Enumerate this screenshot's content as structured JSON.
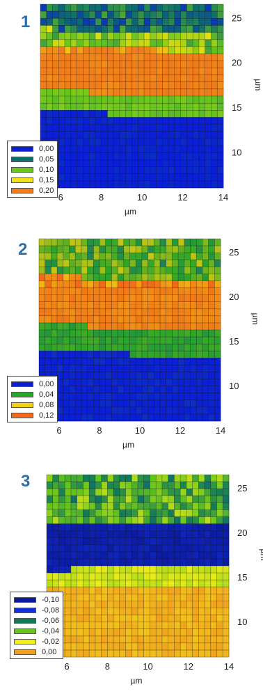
{
  "chart_data": [
    {
      "type": "heatmap",
      "panel_label": "1",
      "xlabel": "µm",
      "ylabel": "µm",
      "xlim": [
        5,
        14
      ],
      "ylim": [
        6,
        26.5
      ],
      "xticks": [
        6,
        8,
        10,
        12,
        14
      ],
      "yticks": [
        10,
        15,
        20,
        25
      ],
      "tick_labels_x": [
        "6",
        "8",
        "10",
        "12",
        "14"
      ],
      "tick_labels_y": [
        "10",
        "15",
        "20",
        "25"
      ],
      "legend": [
        {
          "label": "0,00",
          "color": "#0a1fd6"
        },
        {
          "label": "0,05",
          "color": "#0e6f6a"
        },
        {
          "label": "0,10",
          "color": "#66c61c"
        },
        {
          "label": "0,15",
          "color": "#f2e20f"
        },
        {
          "label": "0,20",
          "color": "#f07d1b"
        }
      ],
      "color_stops": [
        0.0,
        0.05,
        0.1,
        0.15,
        0.2
      ],
      "bands": [
        {
          "y_from": 6,
          "y_to": 14.2,
          "value": 0.0
        },
        {
          "y_from": 14.2,
          "y_to": 16.5,
          "value": 0.1
        },
        {
          "y_from": 16.5,
          "y_to": 21.5,
          "value": 0.2
        },
        {
          "y_from": 21.5,
          "y_to": 23.5,
          "value": 0.11
        },
        {
          "y_from": 23.5,
          "y_to": 26.5,
          "value": 0.05
        }
      ]
    },
    {
      "type": "heatmap",
      "panel_label": "2",
      "xlabel": "µm",
      "ylabel": "µm",
      "xlim": [
        5,
        14
      ],
      "ylim": [
        6,
        26.5
      ],
      "xticks": [
        6,
        8,
        10,
        12,
        14
      ],
      "yticks": [
        10,
        15,
        20,
        25
      ],
      "tick_labels_x": [
        "6",
        "8",
        "10",
        "12",
        "14"
      ],
      "tick_labels_y": [
        "10",
        "15",
        "20",
        "25"
      ],
      "legend": [
        {
          "label": "0,00",
          "color": "#0a1fd6"
        },
        {
          "label": "0,04",
          "color": "#2aa52a"
        },
        {
          "label": "0,08",
          "color": "#f2d010"
        },
        {
          "label": "0,12",
          "color": "#f06a1b"
        }
      ],
      "color_stops": [
        0.0,
        0.04,
        0.08,
        0.12
      ],
      "bands": [
        {
          "y_from": 6,
          "y_to": 13.5,
          "value": 0.0
        },
        {
          "y_from": 13.5,
          "y_to": 16.5,
          "value": 0.04
        },
        {
          "y_from": 16.5,
          "y_to": 22.0,
          "value": 0.11
        },
        {
          "y_from": 22.0,
          "y_to": 26.5,
          "value": 0.05
        }
      ]
    },
    {
      "type": "heatmap",
      "panel_label": "3",
      "xlabel": "µm",
      "ylabel": "µm",
      "xlim": [
        5,
        14
      ],
      "ylim": [
        6,
        26.5
      ],
      "xticks": [
        6,
        8,
        10,
        12,
        14
      ],
      "yticks": [
        10,
        15,
        20,
        25
      ],
      "tick_labels_x": [
        "6",
        "8",
        "10",
        "12",
        "14"
      ],
      "tick_labels_y": [
        "10",
        "15",
        "20",
        "25"
      ],
      "legend": [
        {
          "label": "-0,10",
          "color": "#0b1a9e"
        },
        {
          "label": "-0,08",
          "color": "#1230e0"
        },
        {
          "label": "-0,06",
          "color": "#117a5a"
        },
        {
          "label": "-0,04",
          "color": "#66c61c"
        },
        {
          "label": "-0,02",
          "color": "#f2ee1a"
        },
        {
          "label": "0,00",
          "color": "#f0a020"
        }
      ],
      "color_stops": [
        -0.1,
        -0.08,
        -0.06,
        -0.04,
        -0.02,
        0.0
      ],
      "bands": [
        {
          "y_from": 6,
          "y_to": 14.0,
          "value": -0.005
        },
        {
          "y_from": 14.0,
          "y_to": 16.0,
          "value": -0.025
        },
        {
          "y_from": 16.0,
          "y_to": 21.0,
          "value": -0.095
        },
        {
          "y_from": 21.0,
          "y_to": 26.5,
          "value": -0.045
        }
      ]
    }
  ]
}
